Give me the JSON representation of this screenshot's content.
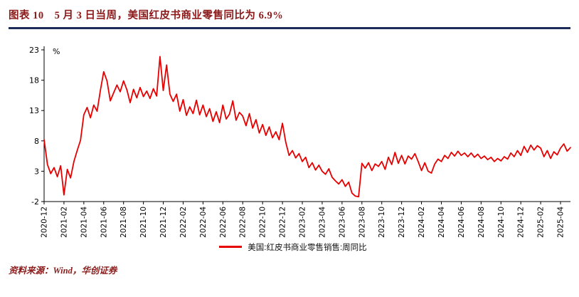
{
  "header": {
    "title": "图表 10　5 月 3 日当周，美国红皮书商业零售同比为 6.9%"
  },
  "footer": {
    "source": "资料来源：Wind，华创证券"
  },
  "colors": {
    "title_red": "#8b1a1a",
    "rule_navy": "#1e2c5a",
    "line_red": "#e60000",
    "axis_black": "#000000"
  },
  "chart_data": {
    "type": "line",
    "title": "5月3日当周，美国红皮书商业零售同比为6.9%",
    "unit": "%",
    "xlabel": "",
    "ylabel": "%",
    "ylim": [
      -2,
      23
    ],
    "y_ticks": [
      -2,
      3,
      8,
      13,
      18,
      23
    ],
    "grid": false,
    "legend_position": "bottom",
    "x_ticks": [
      "2020-12",
      "2021-02",
      "2021-04",
      "2021-06",
      "2021-08",
      "2021-10",
      "2021-12",
      "2022-02",
      "2022-04",
      "2022-06",
      "2022-08",
      "2022-10",
      "2022-12",
      "2023-02",
      "2023-04",
      "2023-06",
      "2023-08",
      "2023-10",
      "2023-12",
      "2024-02",
      "2024-04",
      "2024-06",
      "2024-08",
      "2024-10",
      "2024-12",
      "2025-02",
      "2025-04"
    ],
    "points_per_month": 3,
    "series": [
      {
        "name": "美国:红皮书商业零售销售:周同比",
        "color": "#e60000",
        "last_value": 6.9,
        "values": [
          8.2,
          4.1,
          2.6,
          3.6,
          2.1,
          3.9,
          -0.9,
          3.3,
          1.9,
          4.6,
          6.4,
          8.1,
          12.3,
          13.5,
          11.8,
          13.9,
          12.9,
          16.3,
          19.4,
          17.9,
          14.6,
          15.9,
          17.2,
          16.1,
          17.9,
          16.4,
          14.3,
          16.5,
          15.1,
          16.8,
          15.3,
          16.2,
          15.0,
          16.6,
          15.4,
          21.9,
          16.3,
          20.5,
          15.7,
          14.5,
          15.7,
          12.9,
          14.8,
          12.2,
          13.6,
          12.5,
          14.7,
          12.3,
          13.9,
          12.0,
          13.3,
          11.2,
          12.8,
          11.0,
          13.9,
          11.6,
          12.4,
          14.6,
          11.4,
          12.7,
          12.1,
          10.5,
          12.5,
          10.1,
          11.5,
          9.3,
          10.7,
          8.9,
          10.3,
          8.5,
          9.5,
          8.2,
          10.9,
          7.8,
          5.6,
          6.4,
          5.2,
          5.9,
          4.6,
          5.3,
          3.6,
          4.4,
          3.2,
          4.0,
          3.0,
          2.5,
          3.4,
          2.0,
          1.4,
          0.9,
          1.6,
          0.5,
          1.2,
          -0.6,
          -1.1,
          -1.2,
          4.3,
          3.5,
          4.4,
          3.1,
          4.2,
          3.8,
          4.6,
          3.3,
          5.3,
          4.1,
          6.1,
          4.3,
          5.6,
          4.2,
          5.5,
          5.0,
          5.9,
          4.6,
          3.1,
          4.4,
          3.0,
          2.7,
          4.2,
          5.0,
          4.6,
          5.6,
          5.1,
          6.1,
          5.5,
          6.3,
          5.6,
          6.0,
          5.4,
          6.0,
          5.3,
          5.8,
          5.1,
          5.5,
          4.9,
          5.3,
          4.6,
          5.1,
          4.7,
          5.4,
          5.0,
          6.0,
          5.4,
          6.4,
          5.6,
          7.1,
          6.1,
          7.3,
          6.5,
          7.2,
          6.8,
          5.4,
          6.4,
          5.1,
          6.2,
          5.7,
          6.8,
          7.5,
          6.3,
          6.9
        ]
      }
    ]
  }
}
